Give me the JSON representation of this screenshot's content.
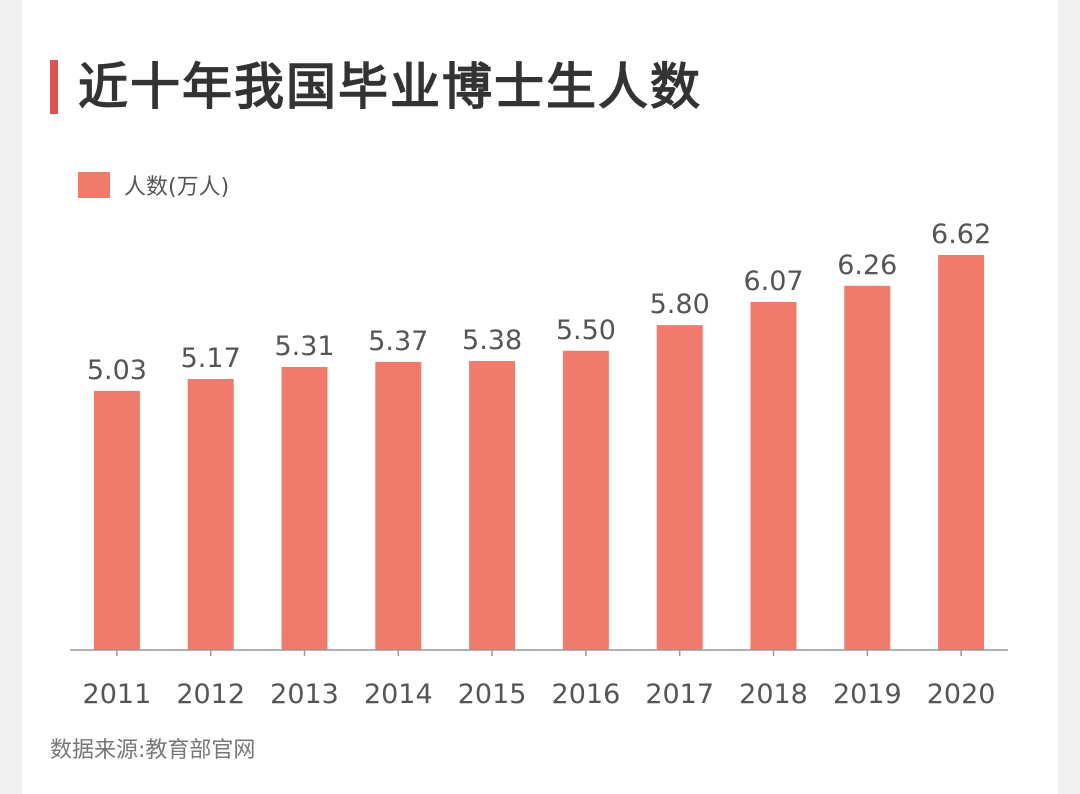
{
  "title": "近十年我国毕业博士生人数",
  "legend_label": "人数(万人)",
  "source": "数据来源:教育部官网",
  "colors": {
    "bar": "#f07b6d",
    "accent": "#d85553",
    "axis": "#999999",
    "label": "#555555"
  },
  "chart_data": {
    "type": "bar",
    "title": "近十年我国毕业博士生人数",
    "categories": [
      "2011",
      "2012",
      "2013",
      "2014",
      "2015",
      "2016",
      "2017",
      "2018",
      "2019",
      "2020"
    ],
    "series": [
      {
        "name": "人数(万人)",
        "values": [
          5.03,
          5.17,
          5.31,
          5.37,
          5.38,
          5.5,
          5.8,
          6.07,
          6.26,
          6.62
        ]
      }
    ],
    "value_labels": [
      "5.03",
      "5.17",
      "5.31",
      "5.37",
      "5.38",
      "5.50",
      "5.80",
      "6.07",
      "6.26",
      "6.62"
    ],
    "xlabel": "",
    "ylabel": "",
    "ylim": [
      2.0,
      6.62
    ],
    "grid": false,
    "legend_position": "top-left"
  }
}
